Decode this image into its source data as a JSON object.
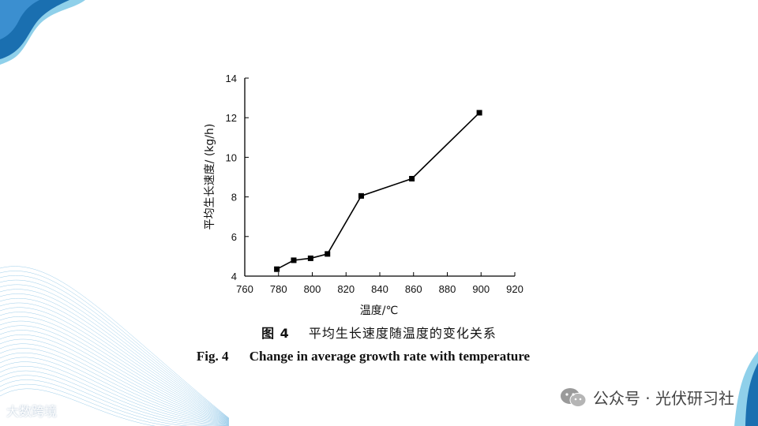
{
  "chart_data": {
    "type": "line",
    "x": [
      779,
      789,
      799,
      809,
      829,
      859,
      899
    ],
    "series": [
      {
        "values": [
          4.35,
          4.8,
          4.9,
          5.12,
          8.05,
          8.92,
          12.25
        ]
      }
    ],
    "xlabel": "温度/℃",
    "ylabel": "平均生长速度/ (kg/h)",
    "xlim": [
      760,
      920
    ],
    "ylim": [
      4,
      14
    ],
    "xticks": [
      "760",
      "780",
      "800",
      "820",
      "840",
      "860",
      "880",
      "900",
      "920"
    ],
    "yticks": [
      "4",
      "6",
      "8",
      "10",
      "12",
      "14"
    ],
    "marker": "square",
    "grid": false,
    "line_color": "#000000"
  },
  "caption": {
    "cn_fig": "图 4",
    "cn_title": "平均生长速度随温度的变化关系",
    "en_fig": "Fig. 4",
    "en_title": "Change in average growth rate with temperature"
  },
  "watermarks": {
    "left": "大数跨境",
    "right": "公众号 · 光伏研习社"
  },
  "colors": {
    "deco_dark": "#1a6fb0",
    "deco_light": "#8fd0ea",
    "wave": "#4aa3d8"
  }
}
